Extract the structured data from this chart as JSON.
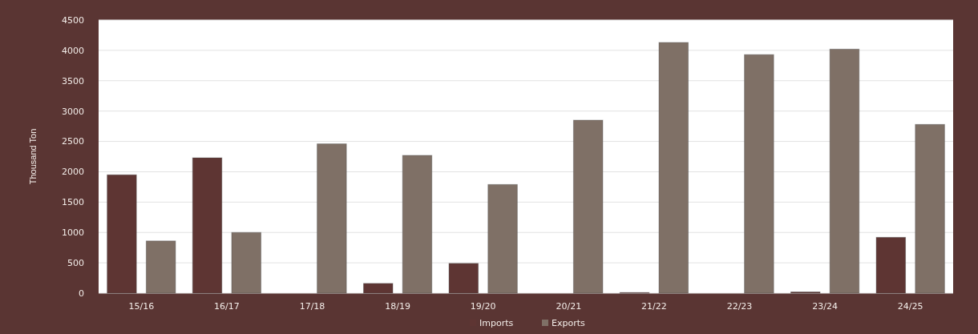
{
  "chart_data": {
    "type": "bar",
    "ylabel": "Thousand Ton",
    "categories": [
      "15/16",
      "16/17",
      "17/18",
      "18/19",
      "19/20",
      "20/21",
      "21/22",
      "22/23",
      "23/24",
      "24/25"
    ],
    "series": [
      {
        "name": "Imports",
        "color": "#5e3533",
        "values": [
          1950,
          2230,
          0,
          160,
          490,
          0,
          10,
          0,
          20,
          920
        ]
      },
      {
        "name": "Exports",
        "color": "#7f7066",
        "values": [
          860,
          1000,
          2460,
          2270,
          1790,
          2850,
          4130,
          3930,
          4020,
          2780
        ]
      }
    ],
    "ylim": [
      0,
      4500
    ],
    "yticks": [
      0,
      500,
      1000,
      1500,
      2000,
      2500,
      3000,
      3500,
      4000,
      4500
    ],
    "grid": "y",
    "legend": "bottom"
  }
}
